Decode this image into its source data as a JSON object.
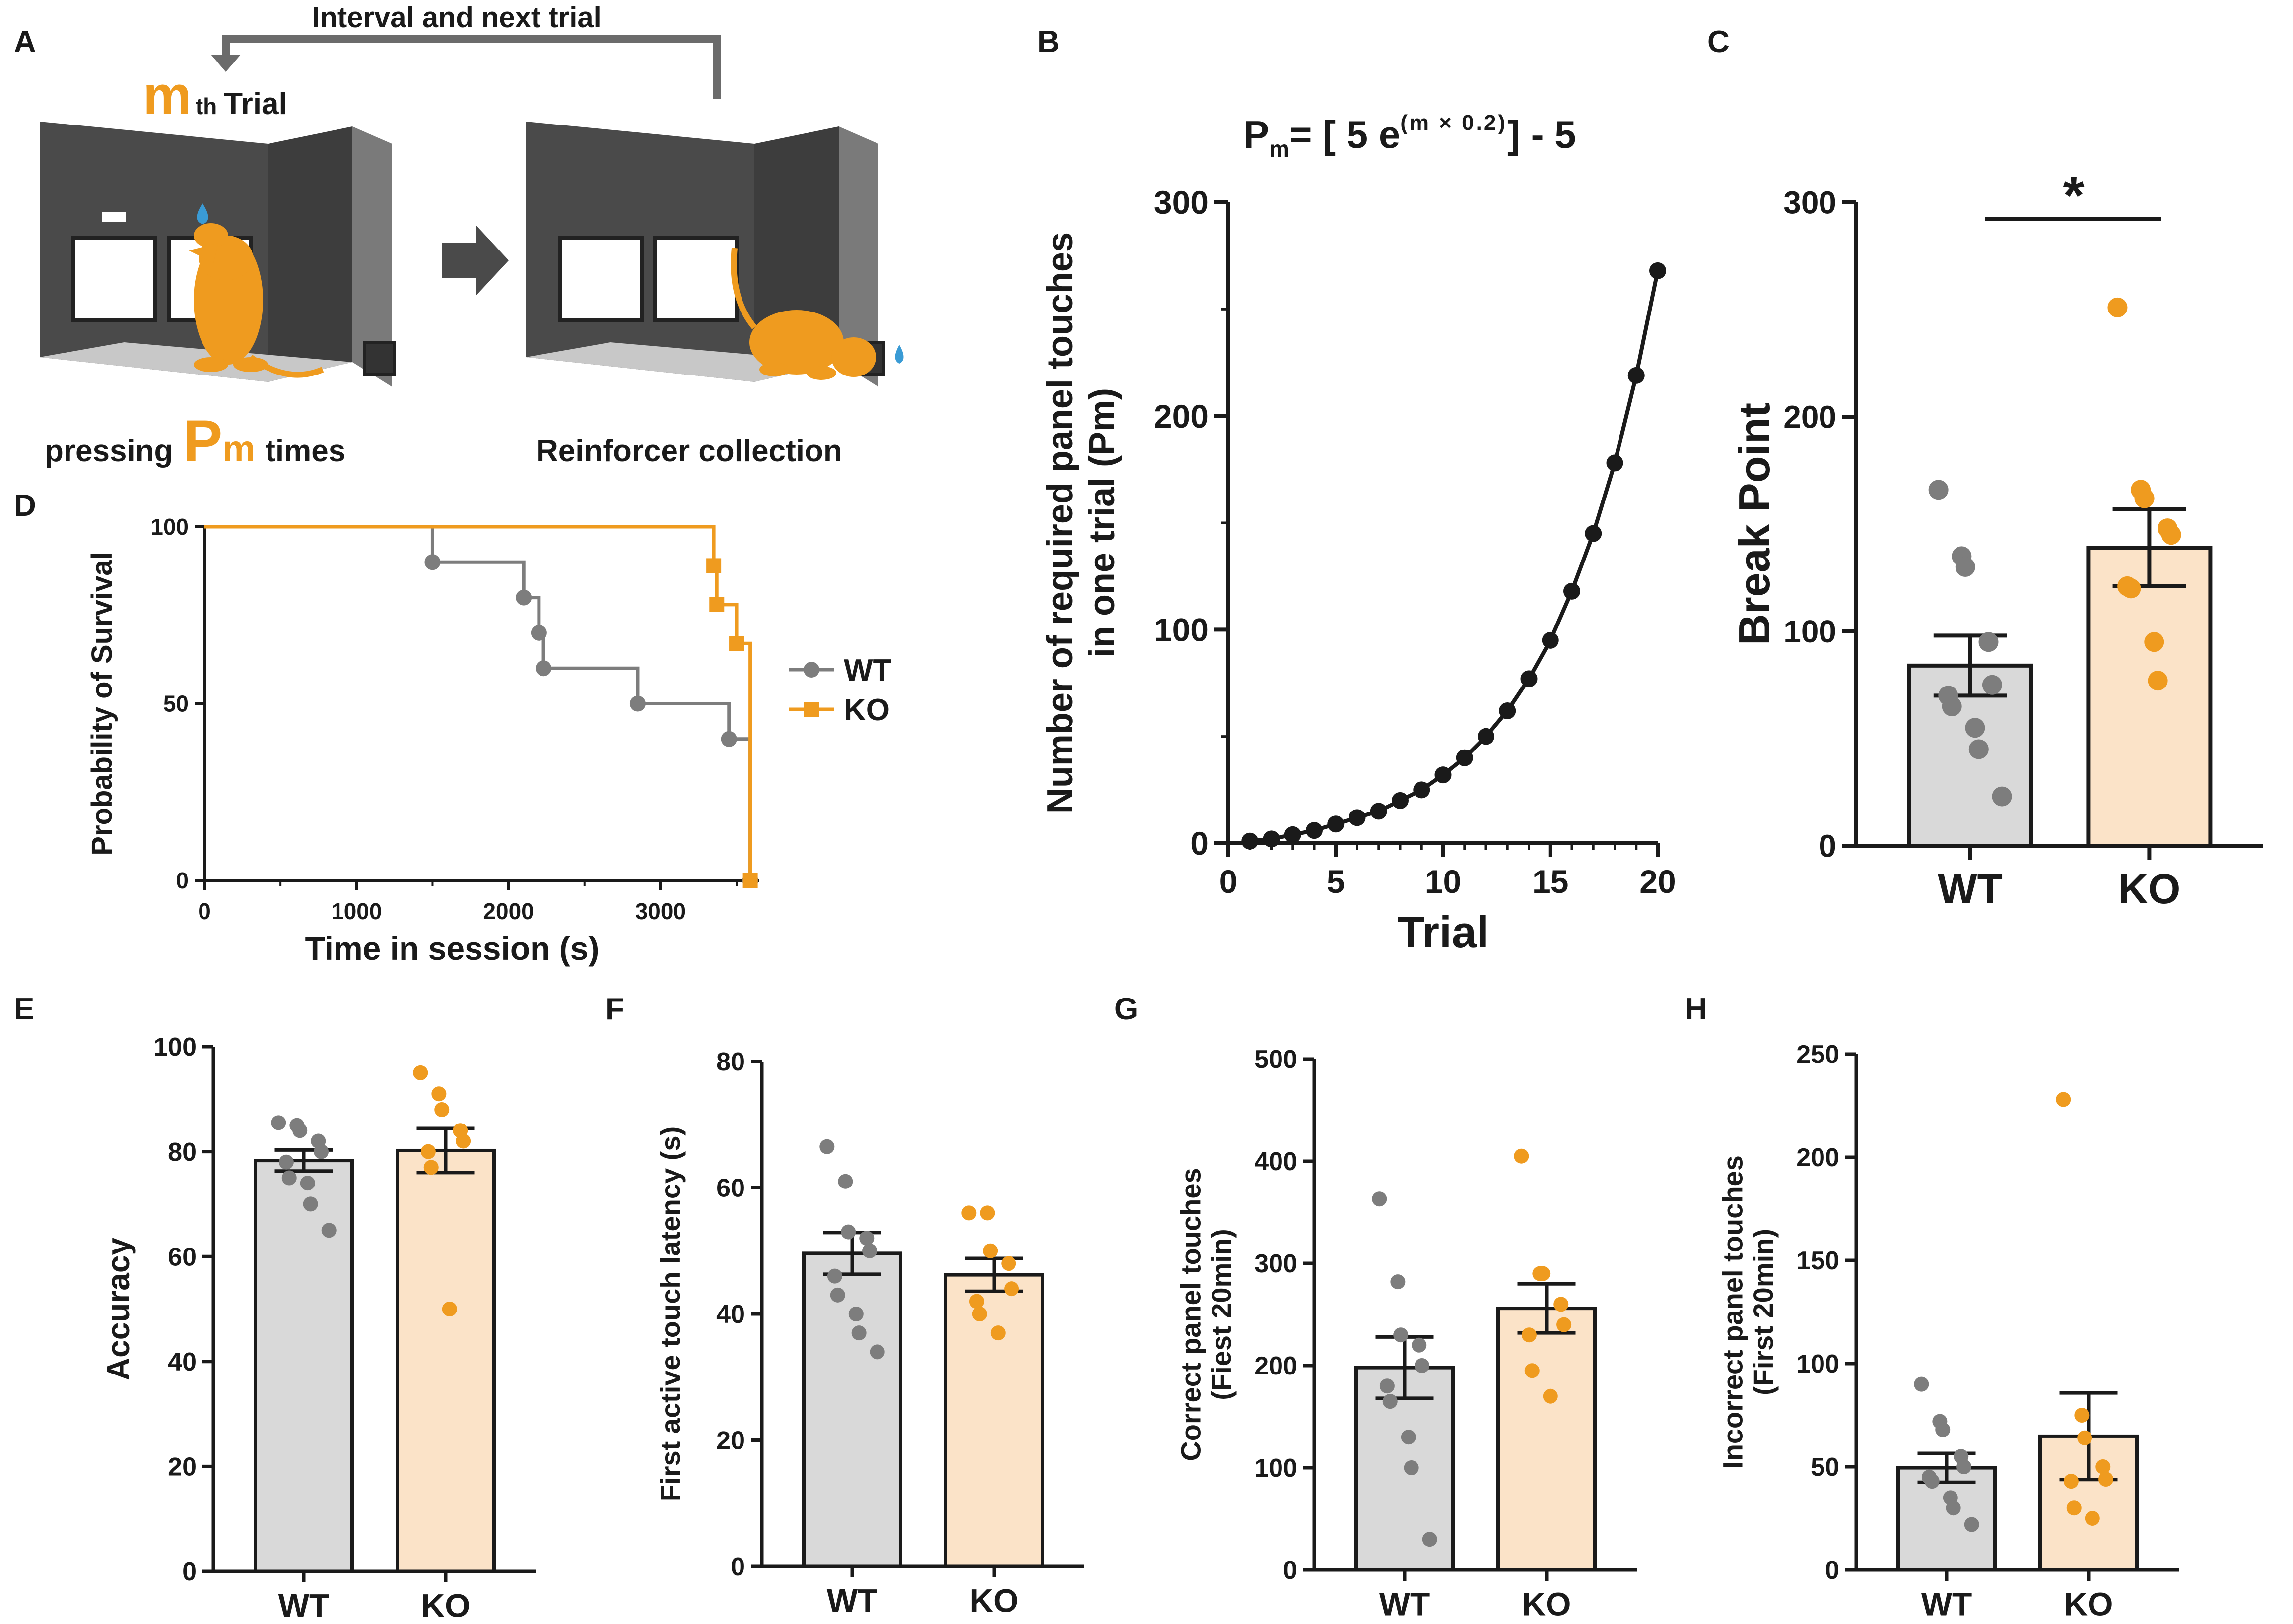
{
  "colors": {
    "wt": "#7d7d7d",
    "ko": "#ef9b1f",
    "wt_bar": "#d9d9d9",
    "ko_bar": "#fbe3c8",
    "chamber_dark": "#4a4a4a",
    "chamber_mid": "#6b6b6b",
    "floor": "#c8c8c8",
    "water": "#3a9bd5",
    "ink": "#1a1a1a"
  },
  "panels": {
    "A": {
      "letter": "A",
      "loop_label": "Interval and next trial",
      "trial_m": "m",
      "trial_th": "th",
      "trial_word": "Trial",
      "press_prefix": "pressing",
      "press_P": "P",
      "press_m": "m",
      "press_suffix": "times",
      "collect_label": "Reinforcer collection"
    },
    "B": {
      "letter": "B",
      "eq_P": "P",
      "eq_sub": "m",
      "eq_mid": "= [ 5 e",
      "eq_exp": "(m × 0.2)",
      "eq_end": "] - 5"
    },
    "C": {
      "letter": "C",
      "sig": "*"
    },
    "D": {
      "letter": "D"
    },
    "E": {
      "letter": "E"
    },
    "F": {
      "letter": "F"
    },
    "G": {
      "letter": "G"
    },
    "H": {
      "letter": "H"
    }
  },
  "chart_data": [
    {
      "id": "B",
      "type": "line",
      "title": "Pm = [ 5 e(m×0.2) ] - 5",
      "xlabel": "Trial",
      "ylabel_line1": "Number of required panel touches",
      "ylabel_line2": "in one trial (Pm)",
      "xlim": [
        0,
        20
      ],
      "ylim": [
        0,
        300
      ],
      "xticks": [
        0,
        5,
        10,
        15,
        20
      ],
      "yticks": [
        0,
        100,
        200,
        300
      ],
      "x": [
        1,
        2,
        3,
        4,
        5,
        6,
        7,
        8,
        9,
        10,
        11,
        12,
        13,
        14,
        15,
        16,
        17,
        18,
        19,
        20
      ],
      "y": [
        1,
        2,
        4,
        6,
        9,
        12,
        15,
        20,
        25,
        32,
        40,
        50,
        62,
        77,
        95,
        118,
        145,
        178,
        219,
        268
      ]
    },
    {
      "id": "C",
      "type": "bar",
      "categories": [
        "WT",
        "KO"
      ],
      "ylabel": "Break Point",
      "ylim": [
        0,
        300
      ],
      "yticks": [
        0,
        100,
        200,
        300
      ],
      "means": [
        84,
        139
      ],
      "sem": [
        14,
        18
      ],
      "points": [
        [
          166,
          135,
          130,
          95,
          75,
          70,
          65,
          55,
          45,
          23
        ],
        [
          251,
          166,
          162,
          148,
          145,
          121,
          120,
          95,
          77
        ]
      ],
      "significance": "*"
    },
    {
      "id": "D",
      "type": "line",
      "subtype": "survival",
      "xlabel": "Time in session (s)",
      "ylabel": "Probability of Survival",
      "xlim": [
        0,
        3650
      ],
      "ylim": [
        0,
        100
      ],
      "xticks": [
        0,
        1000,
        2000,
        3000
      ],
      "yticks": [
        0,
        50,
        100
      ],
      "series": [
        {
          "name": "WT",
          "steps": [
            [
              0,
              100
            ],
            [
              1500,
              90
            ],
            [
              2100,
              80
            ],
            [
              2200,
              70
            ],
            [
              2230,
              60
            ],
            [
              2850,
              50
            ],
            [
              3450,
              40
            ],
            [
              3590,
              0
            ]
          ],
          "end": 3590
        },
        {
          "name": "KO",
          "steps": [
            [
              0,
              100
            ],
            [
              3350,
              89
            ],
            [
              3370,
              78
            ],
            [
              3500,
              67
            ],
            [
              3590,
              0
            ]
          ],
          "end": 3600
        }
      ]
    },
    {
      "id": "E",
      "type": "bar",
      "categories": [
        "WT",
        "KO"
      ],
      "ylabel": "Accuracy",
      "ylim": [
        0,
        100
      ],
      "yticks": [
        0,
        20,
        40,
        60,
        80,
        100
      ],
      "means": [
        78.3,
        80.2
      ],
      "sem": [
        2.0,
        4.2
      ],
      "points": [
        [
          85.5,
          85,
          84,
          82,
          80,
          78,
          75,
          74,
          70,
          65
        ],
        [
          95,
          91,
          88,
          84,
          82,
          80,
          77,
          50
        ]
      ]
    },
    {
      "id": "F",
      "type": "bar",
      "categories": [
        "WT",
        "KO"
      ],
      "ylabel": "First active touch latency (s)",
      "ylim": [
        0,
        80
      ],
      "yticks": [
        0,
        20,
        40,
        60,
        80
      ],
      "means": [
        49.6,
        46.2
      ],
      "sem": [
        3.3,
        2.6
      ],
      "points": [
        [
          66.5,
          61,
          53,
          52,
          50,
          46,
          43,
          40,
          37,
          34
        ],
        [
          56,
          56,
          50,
          48,
          44,
          42,
          40,
          37
        ]
      ]
    },
    {
      "id": "G",
      "type": "bar",
      "categories": [
        "WT",
        "KO"
      ],
      "ylabel_line1": "Correct panel touches",
      "ylabel_line2": "(Fiest 20min)",
      "ylim": [
        0,
        500
      ],
      "yticks": [
        0,
        100,
        200,
        300,
        400,
        500
      ],
      "means": [
        198,
        256
      ],
      "sem": [
        30,
        24
      ],
      "points": [
        [
          363,
          282,
          230,
          220,
          200,
          180,
          165,
          130,
          100,
          30
        ],
        [
          405,
          290,
          290,
          260,
          240,
          230,
          195,
          170
        ]
      ]
    },
    {
      "id": "H",
      "type": "bar",
      "categories": [
        "WT",
        "KO"
      ],
      "ylabel_line1": "Incorrect panel touches",
      "ylabel_line2": "(First 20min)",
      "ylim": [
        0,
        250
      ],
      "yticks": [
        0,
        50,
        100,
        150,
        200,
        250
      ],
      "means": [
        49.5,
        64.8
      ],
      "sem": [
        7.0,
        21.0
      ],
      "points": [
        [
          90,
          72,
          68,
          55,
          50,
          45,
          43,
          35,
          30,
          22
        ],
        [
          228,
          75,
          64,
          50,
          44,
          43,
          30,
          25
        ]
      ]
    }
  ]
}
